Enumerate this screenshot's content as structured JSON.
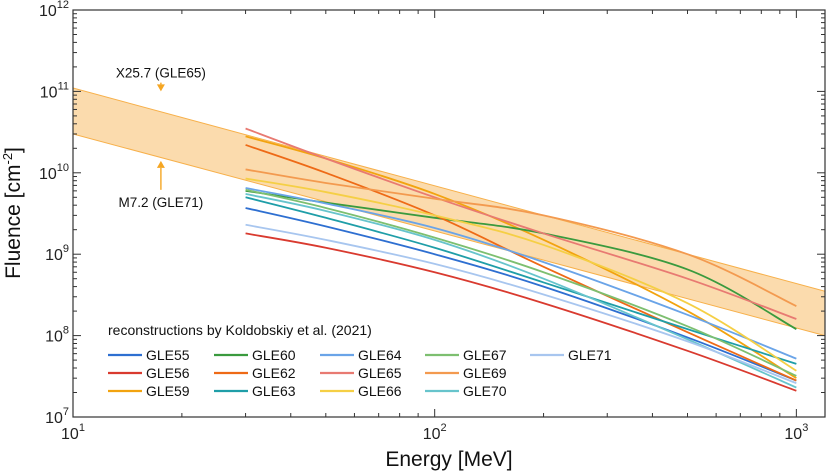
{
  "chart_data": {
    "type": "line",
    "xlabel": "Energy [MeV]",
    "ylabel_main": "Fluence [cm",
    "ylabel_sup": "-2",
    "ylabel_end": "]",
    "xscale": "log",
    "yscale": "log",
    "xlim": [
      10,
      1200
    ],
    "ylim": [
      10000000,
      1000000000000
    ],
    "x_ticks": [
      {
        "base": "10",
        "exp": "1",
        "value": 10
      },
      {
        "base": "10",
        "exp": "2",
        "value": 100
      },
      {
        "base": "10",
        "exp": "3",
        "value": 1000
      }
    ],
    "y_ticks": [
      {
        "base": "10",
        "exp": "7",
        "value": 10000000
      },
      {
        "base": "10",
        "exp": "8",
        "value": 100000000
      },
      {
        "base": "10",
        "exp": "9",
        "value": 1000000000
      },
      {
        "base": "10",
        "exp": "10",
        "value": 10000000000
      },
      {
        "base": "10",
        "exp": "11",
        "value": 100000000000
      },
      {
        "base": "10",
        "exp": "12",
        "value": 1000000000000
      }
    ],
    "band": {
      "x": [
        10,
        1200
      ],
      "upper": [
        110000000000,
        350000000
      ],
      "lower": [
        30000000000,
        100000000
      ],
      "color": "#f7b04a"
    },
    "annotations": [
      {
        "text": "X25.7 (GLE65)",
        "x": 17.5,
        "y": 170000000000,
        "arrow_to": 100000000000
      },
      {
        "text": "M7.2 (GLE71)",
        "x": 17.5,
        "y": 4400000000,
        "arrow_to": 14000000000
      }
    ],
    "legend_title": "reconstructions by Koldobskiy et al. (2021)",
    "legend_placement": "bottom-left",
    "x": [
      30,
      50,
      100,
      200,
      500,
      1000
    ],
    "series": [
      {
        "name": "GLE55",
        "color": "#2e6fd1",
        "values": [
          3700000000,
          2200000000,
          1000000000,
          400000000,
          95000000,
          28000000
        ]
      },
      {
        "name": "GLE56",
        "color": "#d93a2f",
        "values": [
          1800000000,
          1200000000,
          600000000,
          250000000,
          65000000,
          21000000
        ]
      },
      {
        "name": "GLE59",
        "color": "#f2a30f",
        "values": [
          28000000000,
          15000000000,
          5500000000,
          1500000000,
          200000000,
          30000000
        ]
      },
      {
        "name": "GLE60",
        "color": "#3a9a3e",
        "values": [
          6000000000,
          4300000000,
          2800000000,
          1800000000,
          650000000,
          120000000
        ]
      },
      {
        "name": "GLE62",
        "color": "#ee6a16",
        "values": [
          22000000000,
          10000000000,
          3000000000,
          700000000,
          110000000,
          28000000
        ]
      },
      {
        "name": "GLE63",
        "color": "#1f9ea8",
        "values": [
          5000000000,
          2800000000,
          1200000000,
          450000000,
          120000000,
          45000000
        ]
      },
      {
        "name": "GLE64",
        "color": "#6aa4e8",
        "values": [
          6500000000,
          4200000000,
          2100000000,
          800000000,
          180000000,
          52000000
        ]
      },
      {
        "name": "GLE65",
        "color": "#e87a72",
        "values": [
          35000000000,
          15000000000,
          5000000000,
          1800000000,
          500000000,
          160000000
        ]
      },
      {
        "name": "GLE66",
        "color": "#f5cf45",
        "values": [
          8500000000,
          5800000000,
          3000000000,
          1300000000,
          250000000,
          37000000
        ]
      },
      {
        "name": "GLE67",
        "color": "#7dbf70",
        "values": [
          6200000000,
          3700000000,
          1600000000,
          600000000,
          130000000,
          32000000
        ]
      },
      {
        "name": "GLE69",
        "color": "#f39a4f",
        "values": [
          11000000000,
          7500000000,
          4800000000,
          3000000000,
          1000000000,
          230000000
        ]
      },
      {
        "name": "GLE70",
        "color": "#67c4cc",
        "values": [
          5500000000,
          3400000000,
          1500000000,
          500000000,
          90000000,
          23000000
        ]
      },
      {
        "name": "GLE71",
        "color": "#a8c6ef",
        "values": [
          2300000000,
          1500000000,
          760000000,
          320000000,
          85000000,
          26000000
        ]
      }
    ]
  }
}
